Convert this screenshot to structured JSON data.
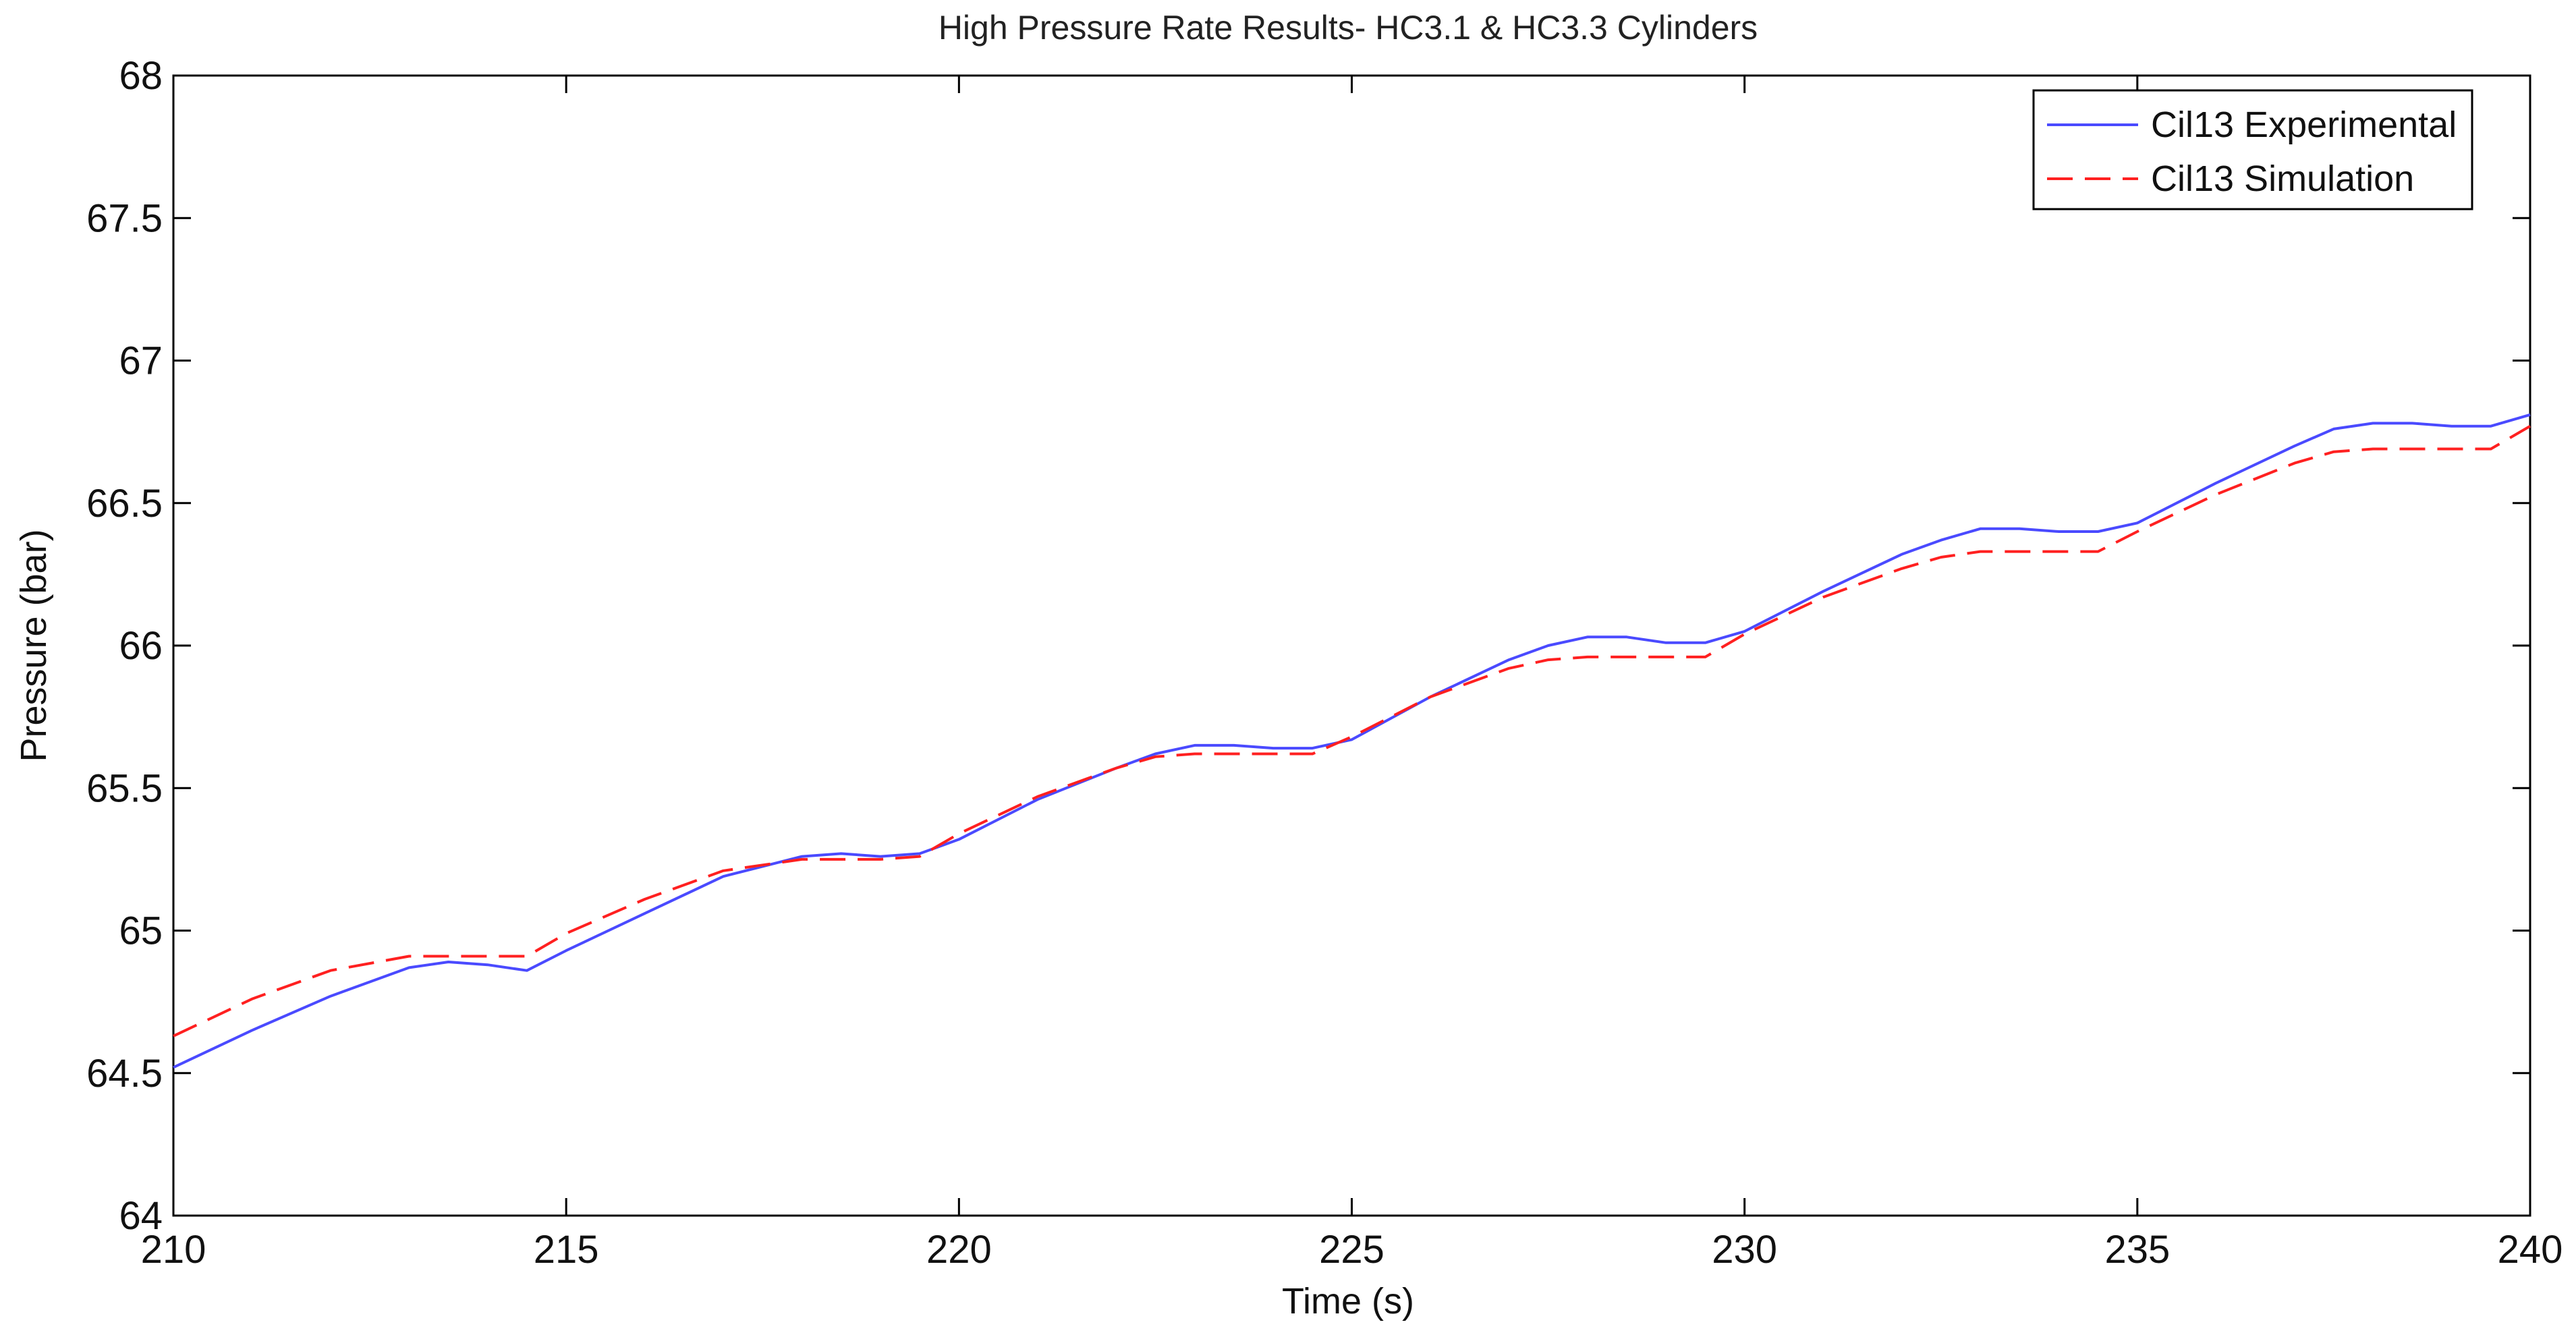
{
  "chart_data": {
    "type": "line",
    "title": "High Pressure Rate Results- HC3.1 & HC3.3 Cylinders",
    "xlabel": "Time (s)",
    "ylabel": "Pressure (bar)",
    "xlim": [
      210,
      240
    ],
    "ylim": [
      64,
      68
    ],
    "xticks": [
      210,
      215,
      220,
      225,
      230,
      235,
      240
    ],
    "yticks": [
      64,
      64.5,
      65,
      65.5,
      66,
      66.5,
      67,
      67.5,
      68
    ],
    "xtick_labels": [
      "210",
      "215",
      "220",
      "225",
      "230",
      "235",
      "240"
    ],
    "ytick_labels": [
      "64",
      "64.5",
      "65",
      "65.5",
      "66",
      "66.5",
      "67",
      "67.5",
      "68"
    ],
    "grid": false,
    "legend_position": "top-right",
    "series": [
      {
        "name": "Cil13 Experimental",
        "color": "#4a4aff",
        "style": "solid",
        "points": [
          [
            210,
            64.52
          ],
          [
            211,
            64.65
          ],
          [
            212,
            64.77
          ],
          [
            213,
            64.87
          ],
          [
            213.5,
            64.89
          ],
          [
            214,
            64.88
          ],
          [
            214.5,
            64.86
          ],
          [
            215,
            64.93
          ],
          [
            216,
            65.06
          ],
          [
            217,
            65.19
          ],
          [
            218,
            65.26
          ],
          [
            218.5,
            65.27
          ],
          [
            219,
            65.26
          ],
          [
            219.5,
            65.27
          ],
          [
            220,
            65.32
          ],
          [
            221,
            65.46
          ],
          [
            222,
            65.57
          ],
          [
            222.5,
            65.62
          ],
          [
            223,
            65.65
          ],
          [
            223.5,
            65.65
          ],
          [
            224,
            65.64
          ],
          [
            224.5,
            65.64
          ],
          [
            225,
            65.67
          ],
          [
            226,
            65.82
          ],
          [
            227,
            65.95
          ],
          [
            227.5,
            66.0
          ],
          [
            228,
            66.03
          ],
          [
            228.5,
            66.03
          ],
          [
            229,
            66.01
          ],
          [
            229.5,
            66.01
          ],
          [
            230,
            66.05
          ],
          [
            231,
            66.19
          ],
          [
            232,
            66.32
          ],
          [
            232.5,
            66.37
          ],
          [
            233,
            66.41
          ],
          [
            233.5,
            66.41
          ],
          [
            234,
            66.4
          ],
          [
            234.5,
            66.4
          ],
          [
            235,
            66.43
          ],
          [
            236,
            66.57
          ],
          [
            237,
            66.7
          ],
          [
            237.5,
            66.76
          ],
          [
            238,
            66.78
          ],
          [
            238.5,
            66.78
          ],
          [
            239,
            66.77
          ],
          [
            239.5,
            66.77
          ],
          [
            240,
            66.81
          ]
        ]
      },
      {
        "name": "Cil13 Simulation",
        "color": "#ff2020",
        "style": "dashed",
        "points": [
          [
            210,
            64.63
          ],
          [
            211,
            64.76
          ],
          [
            212,
            64.86
          ],
          [
            213,
            64.91
          ],
          [
            213.5,
            64.91
          ],
          [
            214,
            64.91
          ],
          [
            214.5,
            64.91
          ],
          [
            215,
            64.99
          ],
          [
            216,
            65.11
          ],
          [
            217,
            65.21
          ],
          [
            218,
            65.25
          ],
          [
            218.5,
            65.25
          ],
          [
            219,
            65.25
          ],
          [
            219.5,
            65.26
          ],
          [
            220,
            65.34
          ],
          [
            221,
            65.47
          ],
          [
            222,
            65.57
          ],
          [
            222.5,
            65.61
          ],
          [
            223,
            65.62
          ],
          [
            223.5,
            65.62
          ],
          [
            224,
            65.62
          ],
          [
            224.5,
            65.62
          ],
          [
            225,
            65.68
          ],
          [
            226,
            65.82
          ],
          [
            227,
            65.92
          ],
          [
            227.5,
            65.95
          ],
          [
            228,
            65.96
          ],
          [
            228.5,
            65.96
          ],
          [
            229,
            65.96
          ],
          [
            229.5,
            65.96
          ],
          [
            230,
            66.04
          ],
          [
            231,
            66.17
          ],
          [
            232,
            66.27
          ],
          [
            232.5,
            66.31
          ],
          [
            233,
            66.33
          ],
          [
            233.5,
            66.33
          ],
          [
            234,
            66.33
          ],
          [
            234.5,
            66.33
          ],
          [
            235,
            66.4
          ],
          [
            236,
            66.53
          ],
          [
            237,
            66.64
          ],
          [
            237.5,
            66.68
          ],
          [
            238,
            66.69
          ],
          [
            238.5,
            66.69
          ],
          [
            239,
            66.69
          ],
          [
            239.5,
            66.69
          ],
          [
            240,
            66.77
          ]
        ]
      }
    ]
  }
}
